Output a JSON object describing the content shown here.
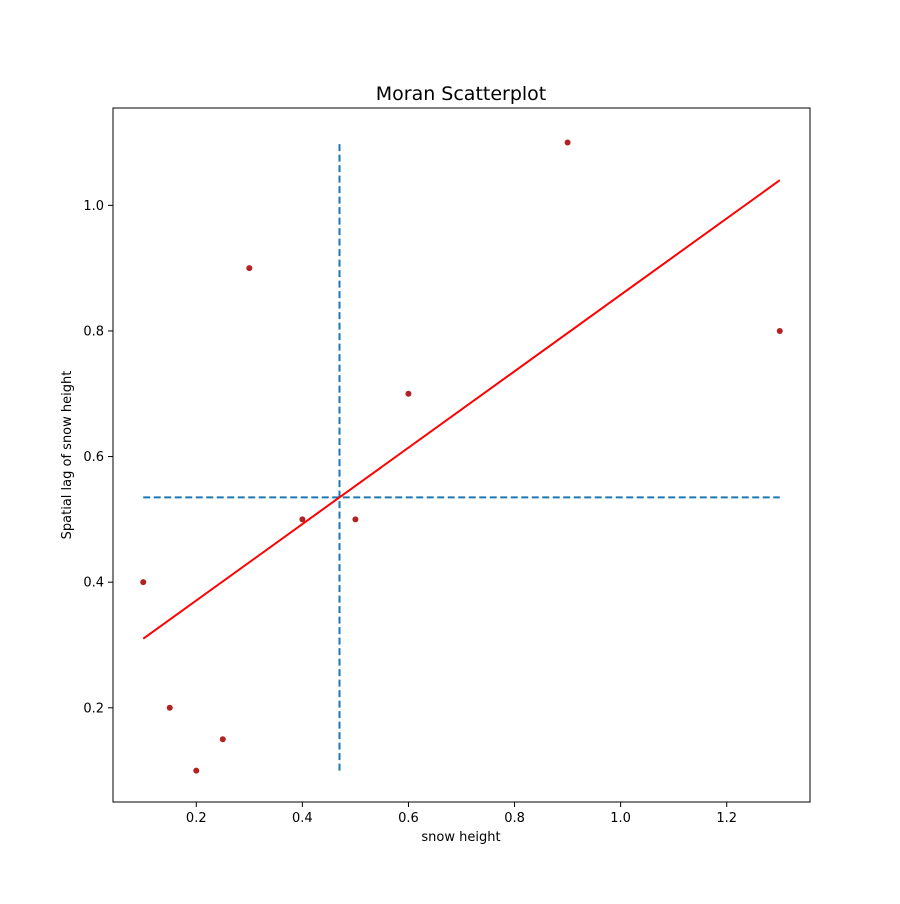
{
  "chart_data": {
    "type": "scatter",
    "title": "Moran Scatterplot",
    "xlabel": "snow height",
    "ylabel": "Spatial lag of snow height",
    "xlim": [
      0.043,
      1.357
    ],
    "ylim": [
      0.05,
      1.155
    ],
    "xticks": [
      {
        "value": 0.2,
        "label": "0.2"
      },
      {
        "value": 0.4,
        "label": "0.4"
      },
      {
        "value": 0.6,
        "label": "0.6"
      },
      {
        "value": 0.8,
        "label": "0.8"
      },
      {
        "value": 1.0,
        "label": "1.0"
      },
      {
        "value": 1.2,
        "label": "1.2"
      }
    ],
    "yticks": [
      {
        "value": 0.2,
        "label": "0.2"
      },
      {
        "value": 0.4,
        "label": "0.4"
      },
      {
        "value": 0.6,
        "label": "0.6"
      },
      {
        "value": 0.8,
        "label": "0.8"
      },
      {
        "value": 1.0,
        "label": "1.0"
      }
    ],
    "grid": false,
    "legend": "none",
    "points": [
      {
        "x": 0.1,
        "y": 0.4
      },
      {
        "x": 0.15,
        "y": 0.2
      },
      {
        "x": 0.2,
        "y": 0.1
      },
      {
        "x": 0.25,
        "y": 0.15
      },
      {
        "x": 0.3,
        "y": 0.9
      },
      {
        "x": 0.4,
        "y": 0.5
      },
      {
        "x": 0.5,
        "y": 0.5
      },
      {
        "x": 0.6,
        "y": 0.7
      },
      {
        "x": 0.9,
        "y": 1.1
      },
      {
        "x": 1.3,
        "y": 0.8
      }
    ],
    "point_color": "#b22222",
    "fit_line": {
      "x": [
        0.1,
        1.3
      ],
      "y": [
        0.31,
        1.04
      ],
      "color": "#ff0000"
    },
    "mean_lines": {
      "vertical": {
        "x": 0.47,
        "y_from": 0.1,
        "y_to": 1.1
      },
      "horizontal": {
        "y": 0.535,
        "x_from": 0.1,
        "x_to": 1.3
      },
      "color": "#1f77b4",
      "style": "dashed"
    }
  }
}
